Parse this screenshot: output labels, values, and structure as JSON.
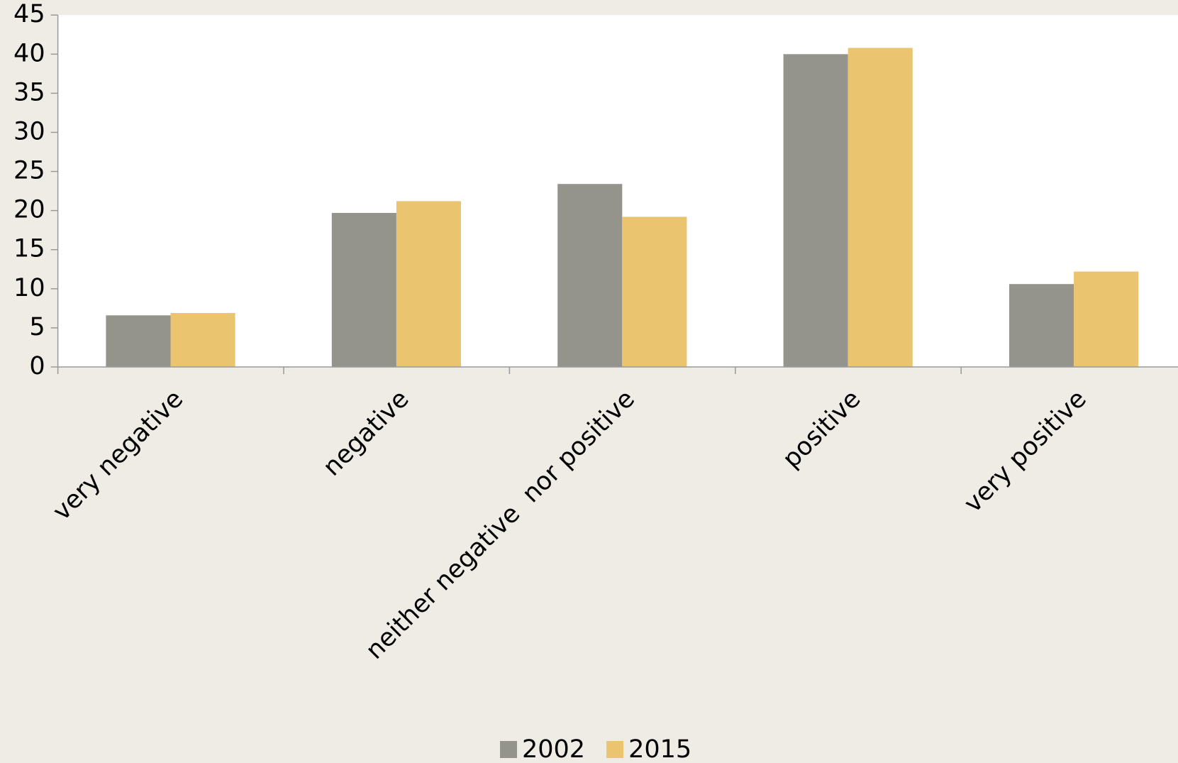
{
  "chart_data": {
    "type": "bar",
    "categories": [
      "very negative",
      "negative",
      "neither negative  nor positive",
      "positive",
      "very positive"
    ],
    "series": [
      {
        "name": "2002",
        "color": "#94948c",
        "values": [
          6.6,
          19.7,
          23.4,
          40.0,
          10.6
        ]
      },
      {
        "name": "2015",
        "color": "#ebc46f",
        "values": [
          6.9,
          21.2,
          19.2,
          40.8,
          12.2
        ]
      }
    ],
    "ylim": [
      0,
      45
    ],
    "yticks": [
      0,
      5,
      10,
      15,
      20,
      25,
      30,
      35,
      40,
      45
    ],
    "grid": false,
    "legend": "bottom"
  }
}
